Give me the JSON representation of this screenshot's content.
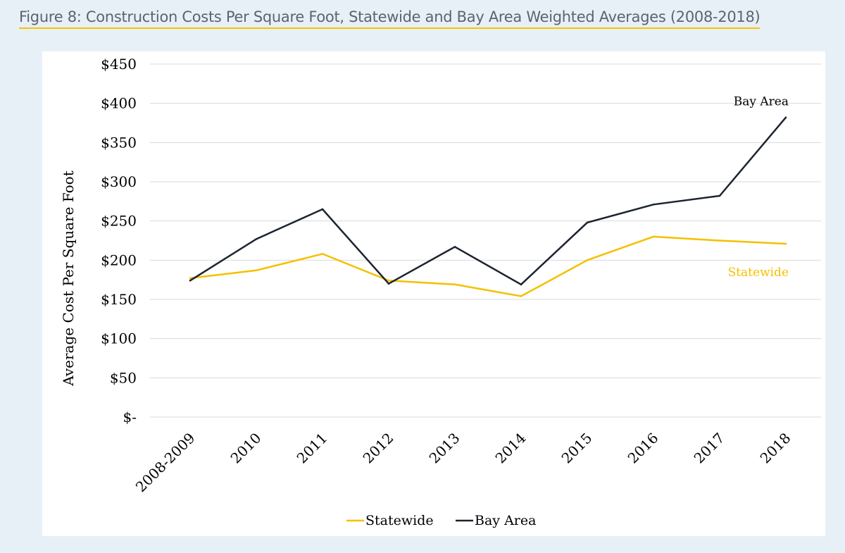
{
  "figure": {
    "title": "Figure 8: Construction Costs Per Square Foot, Statewide and Bay Area Weighted Averages (2008-2018)"
  },
  "colors": {
    "statewide": "#f5c000",
    "bay_area": "#1c2430",
    "gridline": "#d9d9d9",
    "title_underline": "#f5c400"
  },
  "chart_data": {
    "type": "line",
    "title": "Figure 8: Construction Costs Per Square Foot, Statewide and Bay Area Weighted Averages (2008-2018)",
    "xlabel": "",
    "ylabel": "Average Cost Per Square Foot",
    "categories": [
      "2008-2009",
      "2010",
      "2011",
      "2012",
      "2013",
      "2014",
      "2015",
      "2016",
      "2017",
      "2018"
    ],
    "ylim": [
      0,
      450
    ],
    "yticks": [
      0,
      50,
      100,
      150,
      200,
      250,
      300,
      350,
      400,
      450
    ],
    "ytick_labels": [
      "$-",
      "$50",
      "$100",
      "$150",
      "$200",
      "$250",
      "$300",
      "$350",
      "$400",
      "$450"
    ],
    "grid": true,
    "series": [
      {
        "name": "Statewide",
        "color": "#f5c000",
        "values": [
          177,
          187,
          208,
          174,
          169,
          154,
          200,
          230,
          225,
          221
        ],
        "direct_label": "Statewide"
      },
      {
        "name": "Bay Area",
        "color": "#1c2430",
        "values": [
          174,
          227,
          265,
          170,
          217,
          169,
          248,
          271,
          282,
          382
        ],
        "direct_label": "Bay Area"
      }
    ],
    "legend": {
      "position": "bottom",
      "entries": [
        "Statewide",
        "Bay Area"
      ]
    }
  }
}
